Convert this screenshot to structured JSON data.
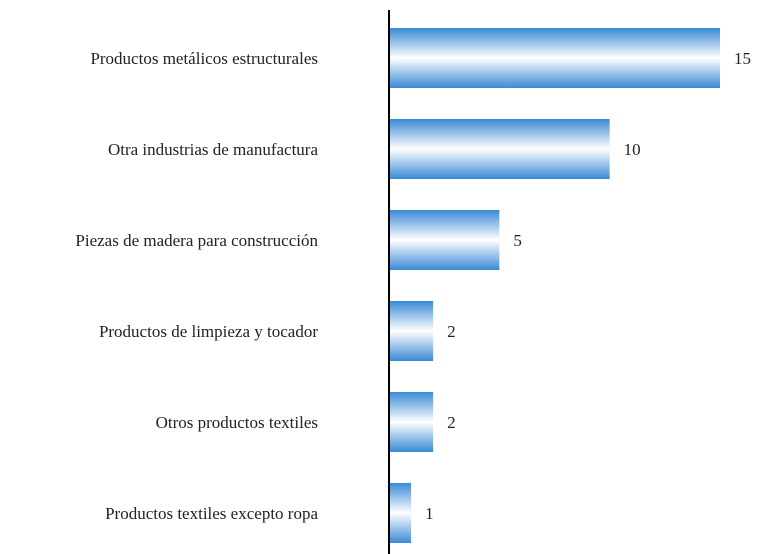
{
  "chart_data": {
    "type": "barh",
    "categories": [
      "Productos metálicos estructurales",
      "Otra industrias de manufactura",
      "Piezas de madera para construcción",
      "Productos de limpieza y tocador",
      "Otros productos textiles",
      "Productos textiles excepto ropa"
    ],
    "values": [
      15,
      10,
      5,
      2,
      2,
      1
    ],
    "color": "#3a8ad6",
    "xlim": [
      0,
      15
    ]
  }
}
